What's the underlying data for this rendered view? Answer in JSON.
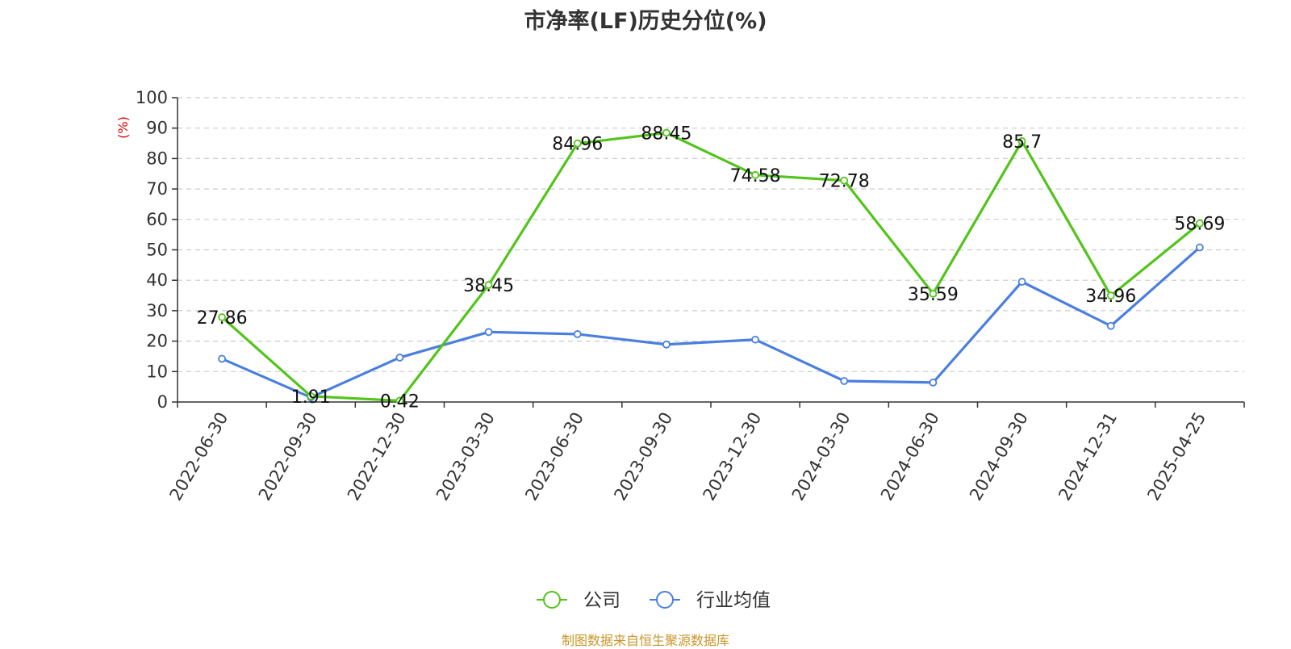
{
  "chart_data": {
    "type": "line",
    "title": "市净率(LF)历史分位(%)",
    "ylabel": "(%)",
    "ylim": [
      0,
      100
    ],
    "yticks": [
      0,
      10,
      20,
      30,
      40,
      50,
      60,
      70,
      80,
      90,
      100
    ],
    "grid": true,
    "legend_position": "bottom-center",
    "categories": [
      "2022-06-30",
      "2022-09-30",
      "2022-12-30",
      "2023-03-30",
      "2023-06-30",
      "2023-09-30",
      "2023-12-30",
      "2024-03-30",
      "2024-06-30",
      "2024-09-30",
      "2024-12-31",
      "2025-04-25"
    ],
    "series": [
      {
        "name": "公司",
        "color": "#52c41a",
        "values": [
          27.86,
          1.91,
          0.42,
          38.45,
          84.96,
          88.45,
          74.58,
          72.78,
          35.59,
          85.7,
          34.96,
          58.69
        ],
        "labels": [
          "27.86",
          "1.91",
          "0.42",
          "38.45",
          "84.96",
          "88.45",
          "74.58",
          "72.78",
          "35.59",
          "85.7",
          "34.96",
          "58.69"
        ]
      },
      {
        "name": "行业均值",
        "color": "#4a7fe0",
        "values": [
          14.2,
          1.5,
          14.6,
          23.0,
          22.3,
          18.9,
          20.5,
          6.9,
          6.4,
          39.5,
          25.0,
          50.8
        ]
      }
    ]
  },
  "source": "制图数据来自恒生聚源数据库"
}
